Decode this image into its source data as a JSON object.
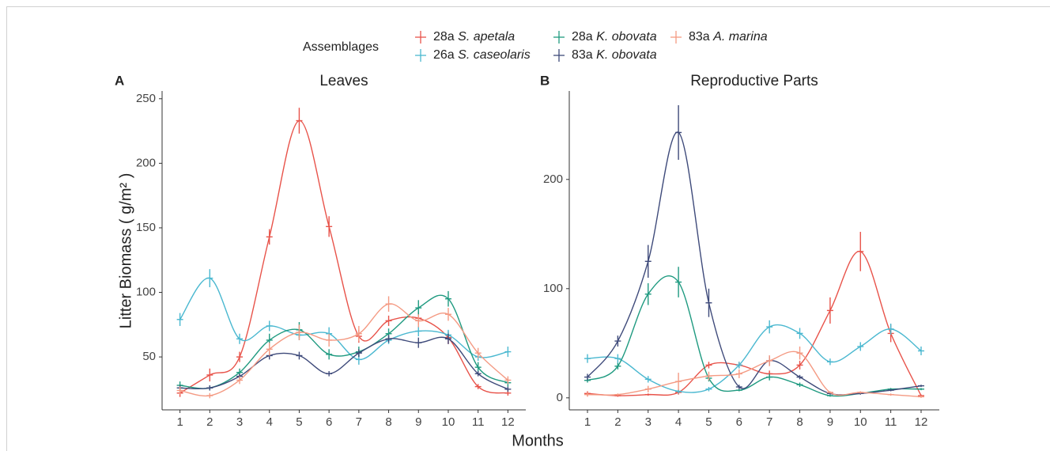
{
  "chart_data": [
    {
      "type": "line",
      "panel_label": "A",
      "title": "Leaves",
      "legend_title": "Assemblages",
      "xlabel": "Months",
      "ylabel": "Litter Biomass ( g/m² )",
      "x": [
        1,
        2,
        3,
        4,
        5,
        6,
        7,
        8,
        9,
        10,
        11,
        12
      ],
      "xlim": [
        0.4,
        12.6
      ],
      "xticks": [
        1,
        2,
        3,
        4,
        5,
        6,
        7,
        8,
        9,
        10,
        11,
        12
      ],
      "ylim": [
        9,
        256
      ],
      "yticks": [
        50,
        100,
        150,
        200,
        250
      ],
      "series": [
        {
          "name": "28a S. apetala",
          "color": "#e8534a",
          "values": [
            22,
            36,
            50,
            143,
            233,
            151,
            66,
            78,
            80,
            65,
            27,
            22
          ],
          "errors": [
            3,
            5,
            4,
            6,
            10,
            8,
            5,
            4,
            5,
            5,
            2,
            2
          ]
        },
        {
          "name": "26a S. caseolaris",
          "color": "#4ab8d0",
          "values": [
            79,
            111,
            64,
            74,
            67,
            68,
            48,
            63,
            70,
            67,
            50,
            54
          ],
          "errors": [
            5,
            7,
            4,
            4,
            4,
            5,
            4,
            3,
            4,
            4,
            3,
            4
          ]
        },
        {
          "name": "28a K. obovata",
          "color": "#1f9a80",
          "values": [
            28,
            26,
            38,
            63,
            71,
            52,
            54,
            68,
            88,
            95,
            42,
            30
          ],
          "errors": [
            3,
            2,
            3,
            5,
            6,
            4,
            4,
            4,
            6,
            6,
            4,
            3
          ]
        },
        {
          "name": "83a K. obovata",
          "color": "#3e4a7a",
          "values": [
            26,
            26,
            35,
            51,
            51,
            37,
            53,
            64,
            61,
            64,
            37,
            25
          ],
          "errors": [
            2,
            2,
            2,
            3,
            3,
            2,
            3,
            3,
            4,
            4,
            2,
            2
          ]
        },
        {
          "name": "83a A. marina",
          "color": "#f49a83",
          "values": [
            24,
            20,
            32,
            56,
            69,
            63,
            68,
            91,
            78,
            83,
            53,
            32
          ],
          "errors": [
            3,
            2,
            3,
            5,
            6,
            5,
            6,
            6,
            5,
            5,
            4,
            3
          ]
        }
      ]
    },
    {
      "type": "line",
      "panel_label": "B",
      "title": "Reproductive Parts",
      "x": [
        1,
        2,
        3,
        4,
        5,
        6,
        7,
        8,
        9,
        10,
        11,
        12
      ],
      "xlim": [
        0.4,
        12.6
      ],
      "xticks": [
        1,
        2,
        3,
        4,
        5,
        6,
        7,
        8,
        9,
        10,
        11,
        12
      ],
      "ylim": [
        -11,
        281
      ],
      "yticks": [
        0,
        100,
        200
      ],
      "series": [
        {
          "name": "28a S. apetala",
          "color": "#e8534a",
          "values": [
            4,
            2,
            3,
            5,
            30,
            30,
            22,
            30,
            80,
            134,
            59,
            2
          ],
          "errors": [
            2,
            1,
            1,
            2,
            3,
            3,
            3,
            4,
            12,
            18,
            8,
            1
          ]
        },
        {
          "name": "26a S. caseolaris",
          "color": "#4ab8d0",
          "values": [
            36,
            36,
            17,
            6,
            8,
            30,
            65,
            59,
            33,
            47,
            63,
            43
          ],
          "errors": [
            4,
            4,
            3,
            2,
            2,
            3,
            6,
            5,
            3,
            4,
            5,
            4
          ]
        },
        {
          "name": "28a K. obovata",
          "color": "#1f9a80",
          "values": [
            16,
            29,
            95,
            106,
            18,
            7,
            19,
            12,
            2,
            4,
            8,
            8
          ],
          "errors": [
            2,
            3,
            10,
            14,
            3,
            1,
            3,
            2,
            1,
            1,
            1,
            1
          ]
        },
        {
          "name": "83a K. obovata",
          "color": "#3e4a7a",
          "values": [
            19,
            52,
            125,
            243,
            87,
            10,
            34,
            19,
            4,
            4,
            7,
            11
          ],
          "errors": [
            3,
            5,
            15,
            25,
            13,
            2,
            4,
            2,
            1,
            1,
            1,
            1
          ]
        },
        {
          "name": "83a A. marina",
          "color": "#f49a83",
          "values": [
            3,
            3,
            8,
            15,
            20,
            22,
            34,
            41,
            5,
            5,
            3,
            1
          ],
          "errors": [
            2,
            1,
            3,
            8,
            4,
            4,
            5,
            6,
            1,
            1,
            1,
            1
          ]
        }
      ]
    }
  ]
}
